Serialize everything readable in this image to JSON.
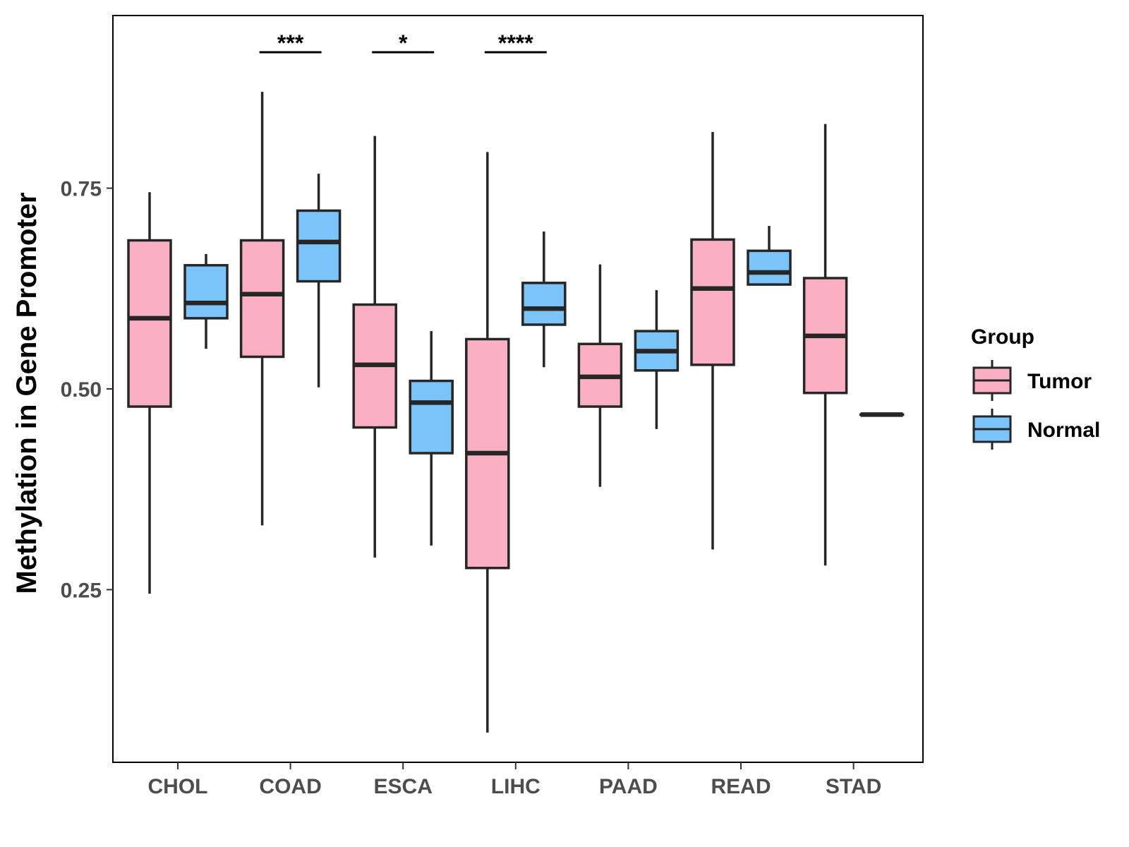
{
  "chart_data": {
    "type": "boxplot",
    "title": "",
    "xlabel": "",
    "ylabel": "Methylation in Gene Promoter",
    "ylim": [
      0.035,
      0.965
    ],
    "yticks": [
      0.25,
      0.5,
      0.75
    ],
    "ytick_labels": [
      "0.25",
      "0.50",
      "0.75"
    ],
    "categories": [
      "CHOL",
      "COAD",
      "ESCA",
      "LIHC",
      "PAAD",
      "READ",
      "STAD"
    ],
    "legend": {
      "title": "Group",
      "position": "right"
    },
    "colors": {
      "Tumor": "#FAB0C2",
      "Normal": "#7AC4F9",
      "stroke": "#262626",
      "frame": "#000000"
    },
    "series": [
      {
        "name": "Tumor",
        "boxes": [
          {
            "min": 0.245,
            "q1": 0.478,
            "median": 0.588,
            "q3": 0.685,
            "max": 0.745
          },
          {
            "min": 0.33,
            "q1": 0.54,
            "median": 0.618,
            "q3": 0.685,
            "max": 0.87
          },
          {
            "min": 0.29,
            "q1": 0.452,
            "median": 0.53,
            "q3": 0.605,
            "max": 0.815
          },
          {
            "min": 0.072,
            "q1": 0.277,
            "median": 0.42,
            "q3": 0.562,
            "max": 0.795
          },
          {
            "min": 0.378,
            "q1": 0.478,
            "median": 0.515,
            "q3": 0.556,
            "max": 0.655
          },
          {
            "min": 0.3,
            "q1": 0.53,
            "median": 0.625,
            "q3": 0.686,
            "max": 0.82
          },
          {
            "min": 0.28,
            "q1": 0.495,
            "median": 0.566,
            "q3": 0.638,
            "max": 0.83
          }
        ]
      },
      {
        "name": "Normal",
        "boxes": [
          {
            "min": 0.55,
            "q1": 0.588,
            "median": 0.607,
            "q3": 0.654,
            "max": 0.668
          },
          {
            "min": 0.502,
            "q1": 0.634,
            "median": 0.683,
            "q3": 0.722,
            "max": 0.768
          },
          {
            "min": 0.305,
            "q1": 0.42,
            "median": 0.483,
            "q3": 0.51,
            "max": 0.572
          },
          {
            "min": 0.527,
            "q1": 0.58,
            "median": 0.6,
            "q3": 0.632,
            "max": 0.696
          },
          {
            "min": 0.45,
            "q1": 0.523,
            "median": 0.547,
            "q3": 0.572,
            "max": 0.623
          },
          {
            "min": 0.63,
            "q1": 0.63,
            "median": 0.645,
            "q3": 0.672,
            "max": 0.703
          },
          {
            "min": 0.468,
            "q1": 0.468,
            "median": 0.468,
            "q3": 0.468,
            "max": 0.468
          }
        ]
      }
    ],
    "significance": [
      {
        "category": "COAD",
        "label": "***"
      },
      {
        "category": "ESCA",
        "label": "*"
      },
      {
        "category": "LIHC",
        "label": "****"
      }
    ]
  }
}
